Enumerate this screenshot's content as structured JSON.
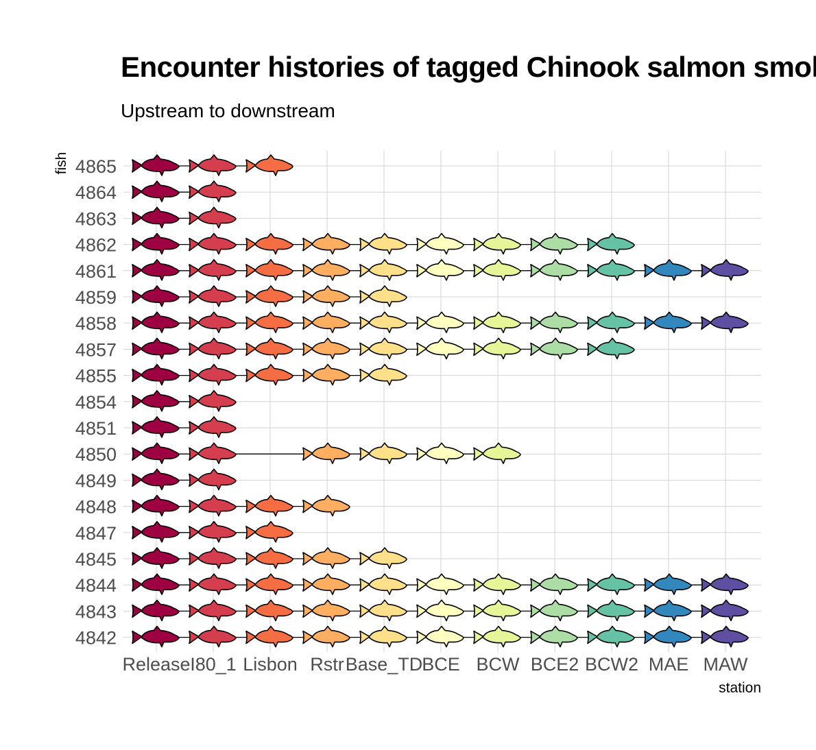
{
  "chart_data": {
    "type": "scatter",
    "title": "Encounter histories of tagged Chinook salmon smolts",
    "subtitle": "Upstream to downstream",
    "xlabel": "station",
    "ylabel": "fish",
    "stations": [
      "Release",
      "I80_1",
      "Lisbon",
      "Rstr",
      "Base_TD",
      "BCE",
      "BCW",
      "BCE2",
      "BCW2",
      "MAE",
      "MAW"
    ],
    "station_colors": [
      "#9E0142",
      "#D53E4F",
      "#F46D43",
      "#FDAE61",
      "#FEE08B",
      "#FFFFBF",
      "#E6F598",
      "#ABDDA4",
      "#66C2A5",
      "#3288BD",
      "#5E4FA2"
    ],
    "fish": [
      "4865",
      "4864",
      "4863",
      "4862",
      "4861",
      "4859",
      "4858",
      "4857",
      "4855",
      "4854",
      "4851",
      "4850",
      "4849",
      "4848",
      "4847",
      "4845",
      "4844",
      "4843",
      "4842"
    ],
    "detections": [
      {
        "fish": "4865",
        "stations": [
          "Release",
          "I80_1",
          "Lisbon"
        ]
      },
      {
        "fish": "4864",
        "stations": [
          "Release",
          "I80_1"
        ]
      },
      {
        "fish": "4863",
        "stations": [
          "Release",
          "I80_1"
        ]
      },
      {
        "fish": "4862",
        "stations": [
          "Release",
          "I80_1",
          "Lisbon",
          "Rstr",
          "Base_TD",
          "BCE",
          "BCW",
          "BCE2",
          "BCW2"
        ]
      },
      {
        "fish": "4861",
        "stations": [
          "Release",
          "I80_1",
          "Lisbon",
          "Rstr",
          "Base_TD",
          "BCE",
          "BCW",
          "BCE2",
          "BCW2",
          "MAE",
          "MAW"
        ]
      },
      {
        "fish": "4859",
        "stations": [
          "Release",
          "I80_1",
          "Lisbon",
          "Rstr",
          "Base_TD"
        ]
      },
      {
        "fish": "4858",
        "stations": [
          "Release",
          "I80_1",
          "Lisbon",
          "Rstr",
          "Base_TD",
          "BCE",
          "BCW",
          "BCE2",
          "BCW2",
          "MAE",
          "MAW"
        ]
      },
      {
        "fish": "4857",
        "stations": [
          "Release",
          "I80_1",
          "Lisbon",
          "Rstr",
          "Base_TD",
          "BCE",
          "BCW",
          "BCE2",
          "BCW2"
        ]
      },
      {
        "fish": "4855",
        "stations": [
          "Release",
          "I80_1",
          "Lisbon",
          "Rstr",
          "Base_TD"
        ]
      },
      {
        "fish": "4854",
        "stations": [
          "Release",
          "I80_1"
        ]
      },
      {
        "fish": "4851",
        "stations": [
          "Release",
          "I80_1"
        ]
      },
      {
        "fish": "4850",
        "stations": [
          "Release",
          "I80_1",
          "Rstr",
          "Base_TD",
          "BCE",
          "BCW"
        ]
      },
      {
        "fish": "4849",
        "stations": [
          "Release",
          "I80_1"
        ]
      },
      {
        "fish": "4848",
        "stations": [
          "Release",
          "I80_1",
          "Lisbon",
          "Rstr"
        ]
      },
      {
        "fish": "4847",
        "stations": [
          "Release",
          "I80_1",
          "Lisbon"
        ]
      },
      {
        "fish": "4845",
        "stations": [
          "Release",
          "I80_1",
          "Lisbon",
          "Rstr",
          "Base_TD"
        ]
      },
      {
        "fish": "4844",
        "stations": [
          "Release",
          "I80_1",
          "Lisbon",
          "Rstr",
          "Base_TD",
          "BCE",
          "BCW",
          "BCE2",
          "BCW2",
          "MAE",
          "MAW"
        ]
      },
      {
        "fish": "4843",
        "stations": [
          "Release",
          "I80_1",
          "Lisbon",
          "Rstr",
          "Base_TD",
          "BCE",
          "BCW",
          "BCE2",
          "BCW2",
          "MAE",
          "MAW"
        ]
      },
      {
        "fish": "4842",
        "stations": [
          "Release",
          "I80_1",
          "Lisbon",
          "Rstr",
          "Base_TD",
          "BCE",
          "BCW",
          "BCE2",
          "BCW2",
          "MAE",
          "MAW"
        ]
      }
    ],
    "grid": true,
    "legend": "none"
  }
}
